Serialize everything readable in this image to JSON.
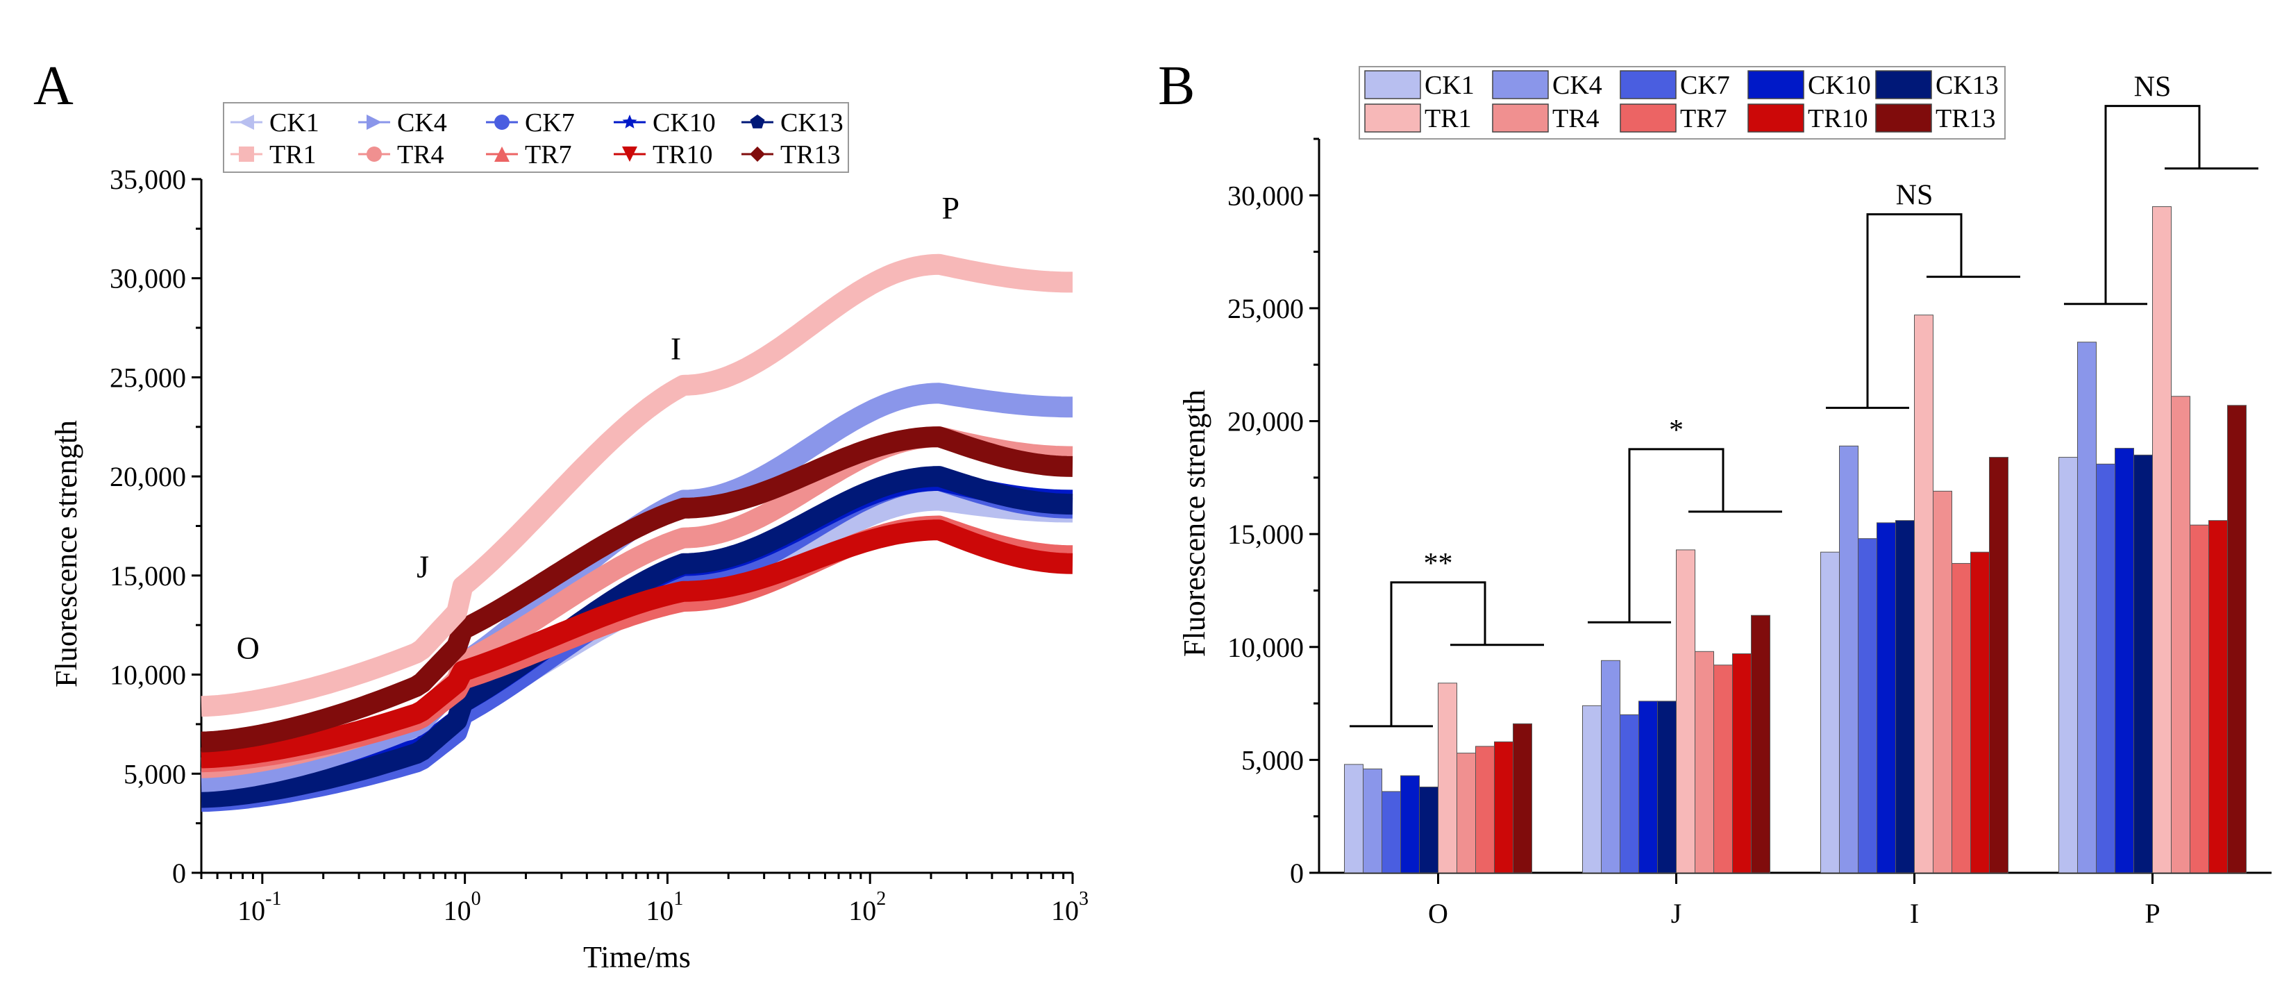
{
  "panels": {
    "a": {
      "letter": "A"
    },
    "b": {
      "letter": "B"
    }
  },
  "chart_data": [
    {
      "type": "line",
      "panel": "A",
      "xlabel": "Time/ms",
      "ylabel": "Fluorescence strength",
      "xscale": "log",
      "xlim": [
        0.05,
        1000
      ],
      "ylim": [
        0,
        35000
      ],
      "x_ticks": [
        0.1,
        1,
        10,
        100,
        1000
      ],
      "x_tick_labels": [
        {
          "base": "10",
          "exp": "-1"
        },
        {
          "base": "10",
          "exp": "0"
        },
        {
          "base": "10",
          "exp": "1"
        },
        {
          "base": "10",
          "exp": "2"
        },
        {
          "base": "10",
          "exp": "3"
        }
      ],
      "y_ticks": [
        0,
        5000,
        10000,
        15000,
        20000,
        25000,
        30000,
        35000
      ],
      "y_tick_labels": [
        "0",
        "5,000",
        "10,000",
        "15,000",
        "20,000",
        "25,000",
        "30,000",
        "35,000"
      ],
      "phase_labels": [
        "O",
        "J",
        "I",
        "P"
      ],
      "legend_position": "top",
      "series": [
        {
          "name": "CK1",
          "color": "#b8bff0",
          "marker": "triangle-left",
          "O": 4800,
          "J": 7400,
          "I": 14200,
          "P": 18800,
          "end": 18200
        },
        {
          "name": "CK4",
          "color": "#8a96ea",
          "marker": "triangle-right",
          "O": 4600,
          "J": 9400,
          "I": 18800,
          "P": 24200,
          "end": 23500
        },
        {
          "name": "CK7",
          "color": "#4a5ee0",
          "marker": "circle",
          "O": 3600,
          "J": 7000,
          "I": 14800,
          "P": 19800,
          "end": 18400
        },
        {
          "name": "CK10",
          "color": "#0019c8",
          "marker": "star",
          "O": 4300,
          "J": 7600,
          "I": 15500,
          "P": 19800,
          "end": 18800
        },
        {
          "name": "CK13",
          "color": "#001878",
          "marker": "pentagon",
          "O": 3800,
          "J": 7600,
          "I": 15600,
          "P": 20000,
          "end": 18600
        },
        {
          "name": "TR1",
          "color": "#f7b8b8",
          "marker": "square",
          "O": 8400,
          "J": 13000,
          "I": 24600,
          "P": 30700,
          "end": 29800
        },
        {
          "name": "TR4",
          "color": "#f09090",
          "marker": "circle",
          "O": 5300,
          "J": 9700,
          "I": 16900,
          "P": 22000,
          "end": 21000
        },
        {
          "name": "TR7",
          "color": "#ec6464",
          "marker": "triangle-up",
          "O": 5600,
          "J": 9200,
          "I": 13700,
          "P": 17500,
          "end": 16000
        },
        {
          "name": "TR10",
          "color": "#cc0808",
          "marker": "triangle-down",
          "O": 5800,
          "J": 9600,
          "I": 14200,
          "P": 17300,
          "end": 15600
        },
        {
          "name": "TR13",
          "color": "#800c0c",
          "marker": "diamond",
          "O": 6600,
          "J": 11400,
          "I": 18400,
          "P": 22000,
          "end": 20500
        }
      ]
    },
    {
      "type": "bar",
      "panel": "B",
      "xlabel": "",
      "ylabel": "Fluorescence strength",
      "ylim": [
        0,
        32500
      ],
      "categories": [
        "O",
        "J",
        "I",
        "P"
      ],
      "y_ticks": [
        0,
        5000,
        10000,
        15000,
        20000,
        25000,
        30000
      ],
      "y_tick_labels": [
        "0",
        "5,000",
        "10,000",
        "15,000",
        "20,000",
        "25,000",
        "30,000"
      ],
      "legend_position": "top",
      "series": [
        {
          "name": "CK1",
          "color": "#b8bff0",
          "values": [
            4800,
            7400,
            14200,
            18400
          ]
        },
        {
          "name": "CK4",
          "color": "#8a96ea",
          "values": [
            4600,
            9400,
            18900,
            23500
          ]
        },
        {
          "name": "CK7",
          "color": "#4a5ee0",
          "values": [
            3600,
            7000,
            14800,
            18100
          ]
        },
        {
          "name": "CK10",
          "color": "#0019c8",
          "values": [
            4300,
            7600,
            15500,
            18800
          ]
        },
        {
          "name": "CK13",
          "color": "#001878",
          "values": [
            3800,
            7600,
            15600,
            18500
          ]
        },
        {
          "name": "TR1",
          "color": "#f7b8b8",
          "values": [
            8400,
            14300,
            24700,
            29500
          ]
        },
        {
          "name": "TR4",
          "color": "#f09090",
          "values": [
            5300,
            9800,
            16900,
            21100
          ]
        },
        {
          "name": "TR7",
          "color": "#ec6464",
          "values": [
            5600,
            9200,
            13700,
            15400
          ]
        },
        {
          "name": "TR10",
          "color": "#cc0808",
          "values": [
            5800,
            9700,
            14200,
            15600
          ]
        },
        {
          "name": "TR13",
          "color": "#800c0c",
          "values": [
            6600,
            11400,
            18400,
            20700
          ]
        }
      ],
      "significance": [
        {
          "category": "O",
          "label": "**"
        },
        {
          "category": "J",
          "label": "*"
        },
        {
          "category": "I",
          "label": "NS"
        },
        {
          "category": "P",
          "label": "NS"
        }
      ]
    }
  ]
}
